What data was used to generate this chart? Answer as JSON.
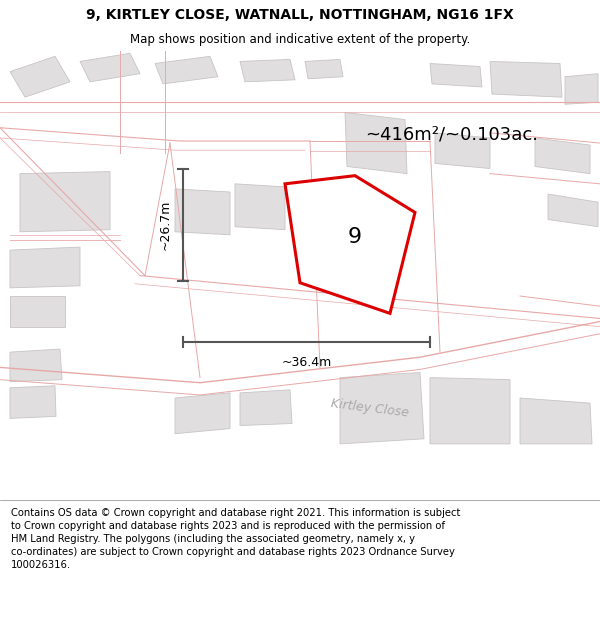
{
  "title_line1": "9, KIRTLEY CLOSE, WATNALL, NOTTINGHAM, NG16 1FX",
  "title_line2": "Map shows position and indicative extent of the property.",
  "footer_text": "Contains OS data © Crown copyright and database right 2021. This information is subject to Crown copyright and database rights 2023 and is reproduced with the permission of HM Land Registry. The polygons (including the associated geometry, namely x, y co-ordinates) are subject to Crown copyright and database rights 2023 Ordnance Survey 100026316.",
  "area_label": "~416m²/~0.103ac.",
  "width_label": "~36.4m",
  "height_label": "~26.7m",
  "plot_number": "9",
  "map_bg": "#ffffff",
  "road_color": "#e8a8a8",
  "building_fill": "#e0dede",
  "building_stroke": "#c8c4c4",
  "highlight_fill": "#ffffff",
  "highlight_stroke": "#ff0000",
  "dim_line_color": "#555555",
  "street_label": "Kirtley Close",
  "title_fontsize": 10,
  "footer_fontsize": 7.2
}
